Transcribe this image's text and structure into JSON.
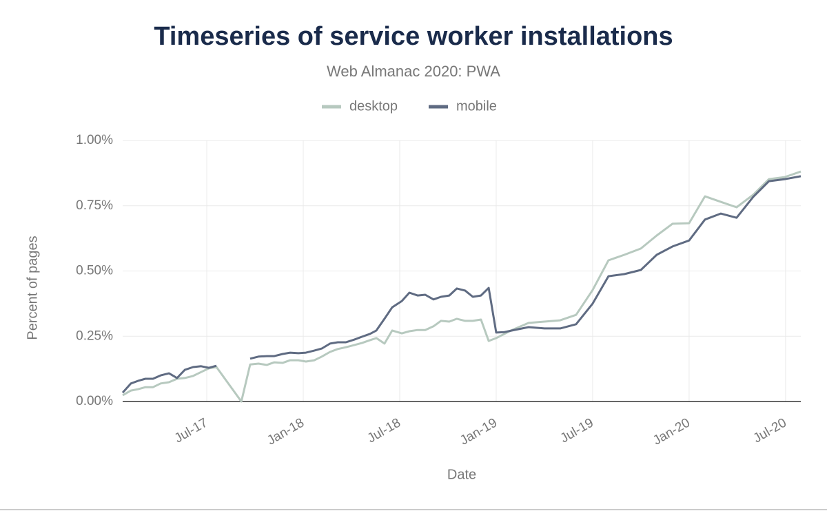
{
  "chart_data": {
    "type": "line",
    "title": "Timeseries of service worker installations",
    "subtitle": "Web Almanac 2020: PWA",
    "x_label": "Date",
    "y_label": "Percent of pages",
    "x": [
      2017.064,
      2017.107,
      2017.143,
      2017.182,
      2017.221,
      2017.261,
      2017.304,
      2017.346,
      2017.386,
      2017.429,
      2017.471,
      2017.511,
      2017.55,
      2017.679,
      2017.725,
      2017.768,
      2017.811,
      2017.85,
      2017.893,
      2017.932,
      2017.975,
      2018.014,
      2018.057,
      2018.096,
      2018.139,
      2018.179,
      2018.221,
      2018.264,
      2018.304,
      2018.346,
      2018.379,
      2018.421,
      2018.461,
      2018.511,
      2018.55,
      2018.593,
      2018.632,
      2018.675,
      2018.714,
      2018.757,
      2018.796,
      2018.839,
      2018.879,
      2018.921,
      2018.961,
      2019.0,
      2019.043,
      2019.082,
      2019.168,
      2019.25,
      2019.332,
      2019.414,
      2019.5,
      2019.582,
      2019.664,
      2019.75,
      2019.832,
      2019.914,
      2020.0,
      2020.082,
      2020.164,
      2020.246,
      2020.332,
      2020.414,
      2020.496,
      2020.579
    ],
    "series": [
      {
        "name": "desktop",
        "color": "#b7c9bf",
        "values": [
          0.024,
          0.042,
          0.047,
          0.055,
          0.055,
          0.069,
          0.074,
          0.087,
          0.09,
          0.098,
          0.113,
          0.127,
          0.132,
          0,
          0.142,
          0.145,
          0.14,
          0.15,
          0.148,
          0.158,
          0.158,
          0.153,
          0.158,
          0.172,
          0.19,
          0.201,
          0.208,
          0.216,
          0.224,
          0.235,
          0.243,
          0.222,
          0.272,
          0.261,
          0.269,
          0.274,
          0.274,
          0.288,
          0.309,
          0.306,
          0.317,
          0.309,
          0.309,
          0.314,
          0.232,
          0.243,
          0.259,
          0.274,
          0.301,
          0.306,
          0.311,
          0.332,
          0.427,
          0.541,
          0.562,
          0.586,
          0.636,
          0.681,
          0.683,
          0.786,
          0.765,
          0.744,
          0.792,
          0.852,
          0.86,
          0.881
        ]
      },
      {
        "name": "mobile",
        "color": "#5f6b82",
        "values": [
          0.034,
          0.069,
          0.079,
          0.087,
          0.087,
          0.1,
          0.108,
          0.09,
          0.121,
          0.132,
          0.135,
          0.129,
          0.137,
          null,
          0.164,
          0.172,
          0.174,
          0.174,
          0.182,
          0.187,
          0.185,
          0.187,
          0.195,
          0.203,
          0.222,
          0.227,
          0.227,
          0.237,
          0.248,
          0.259,
          0.272,
          0.317,
          0.361,
          0.385,
          0.417,
          0.406,
          0.409,
          0.391,
          0.401,
          0.406,
          0.433,
          0.425,
          0.401,
          0.406,
          0.435,
          0.264,
          0.266,
          0.272,
          0.285,
          0.28,
          0.28,
          0.296,
          0.375,
          0.48,
          0.488,
          0.504,
          0.562,
          0.594,
          0.617,
          0.697,
          0.72,
          0.704,
          0.784,
          0.844,
          0.852,
          0.863
        ]
      }
    ],
    "xlim": [
      2017.064,
      2020.579
    ],
    "xticks": [
      {
        "value": 2017.5,
        "label": "Jul-17"
      },
      {
        "value": 2018.0,
        "label": "Jan-18"
      },
      {
        "value": 2018.5,
        "label": "Jul-18"
      },
      {
        "value": 2019.0,
        "label": "Jan-19"
      },
      {
        "value": 2019.5,
        "label": "Jul-19"
      },
      {
        "value": 2020.0,
        "label": "Jan-20"
      },
      {
        "value": 2020.5,
        "label": "Jul-20"
      }
    ],
    "ylim": [
      0,
      1
    ],
    "yticks": [
      {
        "value": 0,
        "label": "0.00%"
      },
      {
        "value": 0.25,
        "label": "0.25%"
      },
      {
        "value": 0.5,
        "label": "0.50%"
      },
      {
        "value": 0.75,
        "label": "0.75%"
      },
      {
        "value": 1,
        "label": "1.00%"
      }
    ],
    "grid": true,
    "legend": "top"
  }
}
